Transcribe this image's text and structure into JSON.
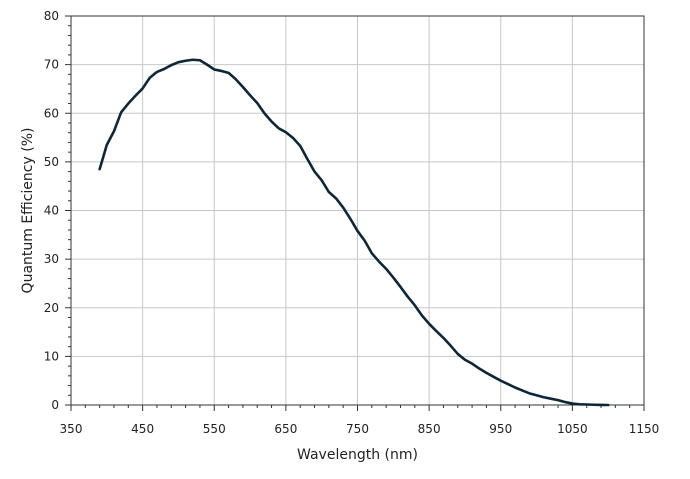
{
  "chart_data": {
    "type": "line",
    "title": "",
    "xlabel": "Wavelength (nm)",
    "ylabel": "Quantum Efficiency (%)",
    "xlim": [
      350,
      1150
    ],
    "ylim": [
      0,
      80
    ],
    "xticks": [
      350,
      450,
      550,
      650,
      750,
      850,
      950,
      1050,
      1150
    ],
    "yticks": [
      0,
      10,
      20,
      30,
      40,
      50,
      60,
      70,
      80
    ],
    "grid": true,
    "legend": "none",
    "colors": {
      "line": "#0f2636",
      "grid": "#c8c8c8",
      "axis": "#333333"
    },
    "series": [
      {
        "x": [
          390,
          400,
          410,
          420,
          430,
          440,
          450,
          460,
          470,
          480,
          490,
          500,
          510,
          520,
          530,
          540,
          550,
          560,
          570,
          580,
          590,
          600,
          610,
          620,
          630,
          640,
          650,
          660,
          670,
          680,
          690,
          700,
          710,
          720,
          730,
          740,
          750,
          760,
          770,
          780,
          790,
          800,
          810,
          820,
          830,
          840,
          850,
          860,
          870,
          880,
          890,
          900,
          910,
          920,
          930,
          940,
          950,
          960,
          970,
          980,
          990,
          1000,
          1010,
          1020,
          1030,
          1040,
          1050,
          1060,
          1070,
          1080,
          1090,
          1100
        ],
        "values": [
          48.5,
          53.5,
          56.3,
          60.2,
          62.0,
          63.6,
          65.1,
          67.3,
          68.5,
          69.1,
          69.9,
          70.5,
          70.8,
          71.0,
          70.9,
          70.0,
          69.0,
          68.7,
          68.3,
          67.0,
          65.4,
          63.7,
          62.1,
          60.0,
          58.3,
          56.9,
          56.1,
          54.9,
          53.3,
          50.6,
          48.0,
          46.2,
          43.8,
          42.5,
          40.6,
          38.3,
          35.8,
          33.8,
          31.2,
          29.5,
          28.0,
          26.2,
          24.3,
          22.3,
          20.5,
          18.4,
          16.7,
          15.2,
          13.8,
          12.2,
          10.5,
          9.3,
          8.5,
          7.5,
          6.6,
          5.8,
          5.0,
          4.3,
          3.6,
          3.0,
          2.4,
          2.0,
          1.6,
          1.3,
          1.0,
          0.6,
          0.3,
          0.15,
          0.1,
          0.05,
          0.02,
          0.0
        ]
      }
    ]
  }
}
